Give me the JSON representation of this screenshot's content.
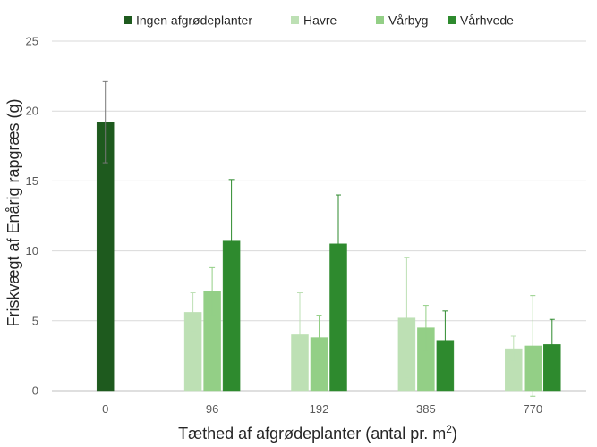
{
  "chart_data": {
    "type": "bar",
    "title": "",
    "xlabel": "Tæthed af afgrødeplanter (antal pr. m",
    "xlabel_superscript": "2",
    "xlabel_suffix": ")",
    "ylabel": "Friskvægt af Enårig rapgræs (g)",
    "ylim": [
      0,
      25
    ],
    "yticks": [
      "0",
      "5",
      "10",
      "15",
      "20",
      "25"
    ],
    "grid": true,
    "legend_position": "top",
    "categories": [
      "0",
      "96",
      "192",
      "385",
      "770"
    ],
    "series": [
      {
        "name": "Ingen afgrødeplanter",
        "color": "#1e5a1e",
        "values": [
          19.2,
          null,
          null,
          null,
          null
        ],
        "error": [
          2.9,
          null,
          null,
          null,
          null
        ]
      },
      {
        "name": "Havre",
        "color": "#bde0b4",
        "values": [
          null,
          5.6,
          4.0,
          5.2,
          3.0
        ],
        "error": [
          null,
          1.4,
          3.0,
          4.3,
          0.9
        ]
      },
      {
        "name": "Vårbyg",
        "color": "#93cf86",
        "values": [
          null,
          7.1,
          3.8,
          4.5,
          3.2
        ],
        "error": [
          null,
          1.7,
          1.6,
          1.6,
          3.6
        ]
      },
      {
        "name": "Vårhvede",
        "color": "#2e8a2e",
        "values": [
          null,
          10.7,
          10.5,
          3.6,
          3.3
        ],
        "error": [
          null,
          4.4,
          3.5,
          2.1,
          1.8
        ]
      }
    ]
  }
}
